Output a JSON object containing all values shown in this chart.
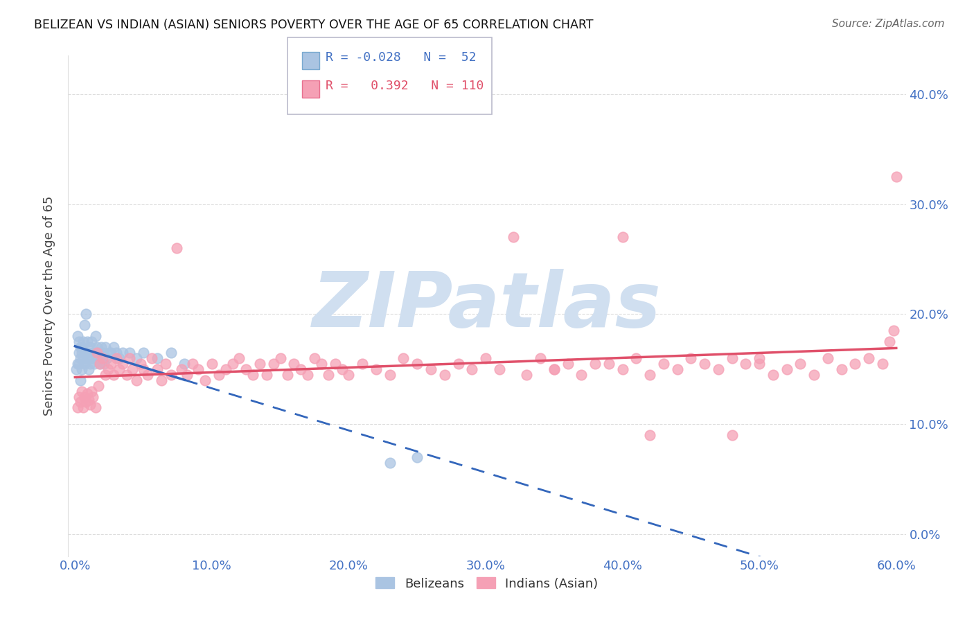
{
  "title": "BELIZEAN VS INDIAN (ASIAN) SENIORS POVERTY OVER THE AGE OF 65 CORRELATION CHART",
  "source": "Source: ZipAtlas.com",
  "ylabel": "Seniors Poverty Over the Age of 65",
  "xlim": [
    0.0,
    0.6
  ],
  "ylim": [
    0.0,
    0.42
  ],
  "legend1_label": "Belizeans",
  "legend2_label": "Indians (Asian)",
  "R_belizean": -0.028,
  "N_belizean": 52,
  "R_indian": 0.392,
  "N_indian": 110,
  "belizean_color": "#aac4e2",
  "belizean_edge_color": "#7aaad0",
  "indian_color": "#f5a0b5",
  "indian_edge_color": "#e87090",
  "belizean_line_color": "#3366bb",
  "indian_line_color": "#e0506a",
  "watermark_color": "#d0dff0",
  "grid_color": "#dddddd",
  "tick_color": "#4472c4",
  "ylabel_color": "#444444",
  "title_color": "#111111",
  "source_color": "#666666",
  "belizean_x": [
    0.001,
    0.002,
    0.002,
    0.003,
    0.003,
    0.003,
    0.004,
    0.004,
    0.004,
    0.005,
    0.005,
    0.005,
    0.006,
    0.006,
    0.007,
    0.007,
    0.008,
    0.008,
    0.009,
    0.009,
    0.01,
    0.01,
    0.011,
    0.011,
    0.012,
    0.012,
    0.013,
    0.014,
    0.015,
    0.016,
    0.016,
    0.017,
    0.018,
    0.019,
    0.02,
    0.021,
    0.022,
    0.023,
    0.025,
    0.026,
    0.028,
    0.03,
    0.032,
    0.035,
    0.04,
    0.045,
    0.05,
    0.06,
    0.07,
    0.08,
    0.23,
    0.25
  ],
  "belizean_y": [
    0.15,
    0.155,
    0.18,
    0.155,
    0.165,
    0.175,
    0.14,
    0.16,
    0.17,
    0.15,
    0.165,
    0.17,
    0.16,
    0.175,
    0.155,
    0.19,
    0.165,
    0.2,
    0.16,
    0.175,
    0.15,
    0.165,
    0.155,
    0.17,
    0.16,
    0.175,
    0.165,
    0.155,
    0.18,
    0.16,
    0.17,
    0.165,
    0.155,
    0.17,
    0.165,
    0.155,
    0.17,
    0.16,
    0.165,
    0.165,
    0.17,
    0.165,
    0.16,
    0.165,
    0.165,
    0.16,
    0.165,
    0.16,
    0.165,
    0.155,
    0.065,
    0.07
  ],
  "indian_x": [
    0.002,
    0.003,
    0.004,
    0.005,
    0.006,
    0.007,
    0.008,
    0.009,
    0.01,
    0.011,
    0.012,
    0.013,
    0.015,
    0.016,
    0.017,
    0.018,
    0.02,
    0.022,
    0.024,
    0.026,
    0.028,
    0.03,
    0.032,
    0.035,
    0.038,
    0.04,
    0.042,
    0.045,
    0.048,
    0.05,
    0.053,
    0.056,
    0.06,
    0.063,
    0.066,
    0.07,
    0.074,
    0.078,
    0.082,
    0.086,
    0.09,
    0.095,
    0.1,
    0.105,
    0.11,
    0.115,
    0.12,
    0.125,
    0.13,
    0.135,
    0.14,
    0.145,
    0.15,
    0.155,
    0.16,
    0.165,
    0.17,
    0.175,
    0.18,
    0.185,
    0.19,
    0.195,
    0.2,
    0.21,
    0.22,
    0.23,
    0.24,
    0.25,
    0.26,
    0.27,
    0.28,
    0.29,
    0.3,
    0.31,
    0.32,
    0.33,
    0.34,
    0.35,
    0.36,
    0.37,
    0.38,
    0.39,
    0.4,
    0.41,
    0.42,
    0.43,
    0.44,
    0.45,
    0.46,
    0.47,
    0.48,
    0.49,
    0.5,
    0.51,
    0.52,
    0.53,
    0.54,
    0.55,
    0.56,
    0.57,
    0.58,
    0.59,
    0.595,
    0.598,
    0.6,
    0.5,
    0.48,
    0.35,
    0.4,
    0.42
  ],
  "indian_y": [
    0.115,
    0.125,
    0.12,
    0.13,
    0.115,
    0.125,
    0.12,
    0.128,
    0.122,
    0.118,
    0.13,
    0.125,
    0.115,
    0.165,
    0.135,
    0.155,
    0.16,
    0.145,
    0.15,
    0.155,
    0.145,
    0.16,
    0.15,
    0.155,
    0.145,
    0.16,
    0.15,
    0.14,
    0.155,
    0.15,
    0.145,
    0.16,
    0.15,
    0.14,
    0.155,
    0.145,
    0.26,
    0.15,
    0.145,
    0.155,
    0.15,
    0.14,
    0.155,
    0.145,
    0.15,
    0.155,
    0.16,
    0.15,
    0.145,
    0.155,
    0.145,
    0.155,
    0.16,
    0.145,
    0.155,
    0.15,
    0.145,
    0.16,
    0.155,
    0.145,
    0.155,
    0.15,
    0.145,
    0.155,
    0.15,
    0.145,
    0.16,
    0.155,
    0.15,
    0.145,
    0.155,
    0.15,
    0.16,
    0.15,
    0.27,
    0.145,
    0.16,
    0.15,
    0.155,
    0.145,
    0.155,
    0.155,
    0.15,
    0.16,
    0.145,
    0.155,
    0.15,
    0.16,
    0.155,
    0.15,
    0.16,
    0.155,
    0.16,
    0.145,
    0.15,
    0.155,
    0.145,
    0.16,
    0.15,
    0.155,
    0.16,
    0.155,
    0.175,
    0.185,
    0.325,
    0.155,
    0.09,
    0.15,
    0.27,
    0.09
  ]
}
